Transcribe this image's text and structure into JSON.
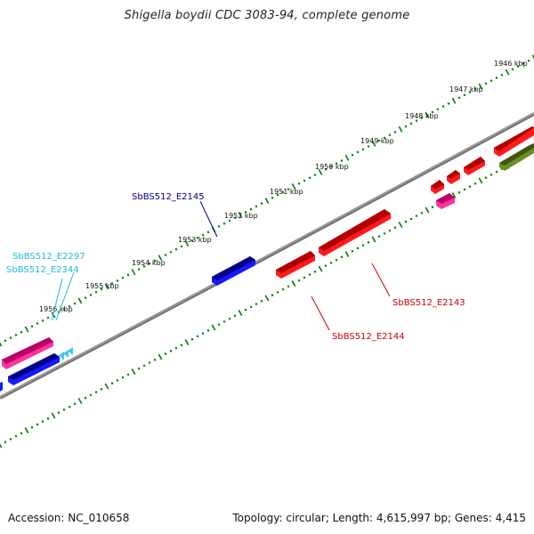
{
  "title": "Shigella boydii CDC 3083-94, complete genome",
  "footer": {
    "accession": "Accession: NC_010658",
    "summary": "Topology: circular; Length: 4,615,997 bp; Genes: 4,415"
  },
  "colors": {
    "backbone": "#888888",
    "tick": "#008000",
    "blue_label": "#00008b",
    "cyan_label": "#22b8d8",
    "red_label": "#cc0000"
  },
  "tick_labels": [
    "1946 kbp",
    "1947 kbp",
    "1948 kbp",
    "1949 kbp",
    "1950 kbp",
    "1951 kbp",
    "1952 kbp",
    "1953 kbp",
    "1954 kbp",
    "1955 kbp",
    "1956 kbp"
  ],
  "gene_labels": {
    "e2145": "SbBS512_E2145",
    "e2297": "SbBS512_E2297",
    "e2344": "SbBS512_E2344",
    "e2143": "SbBS512_E2143",
    "e2144": "SbBS512_E2144"
  }
}
